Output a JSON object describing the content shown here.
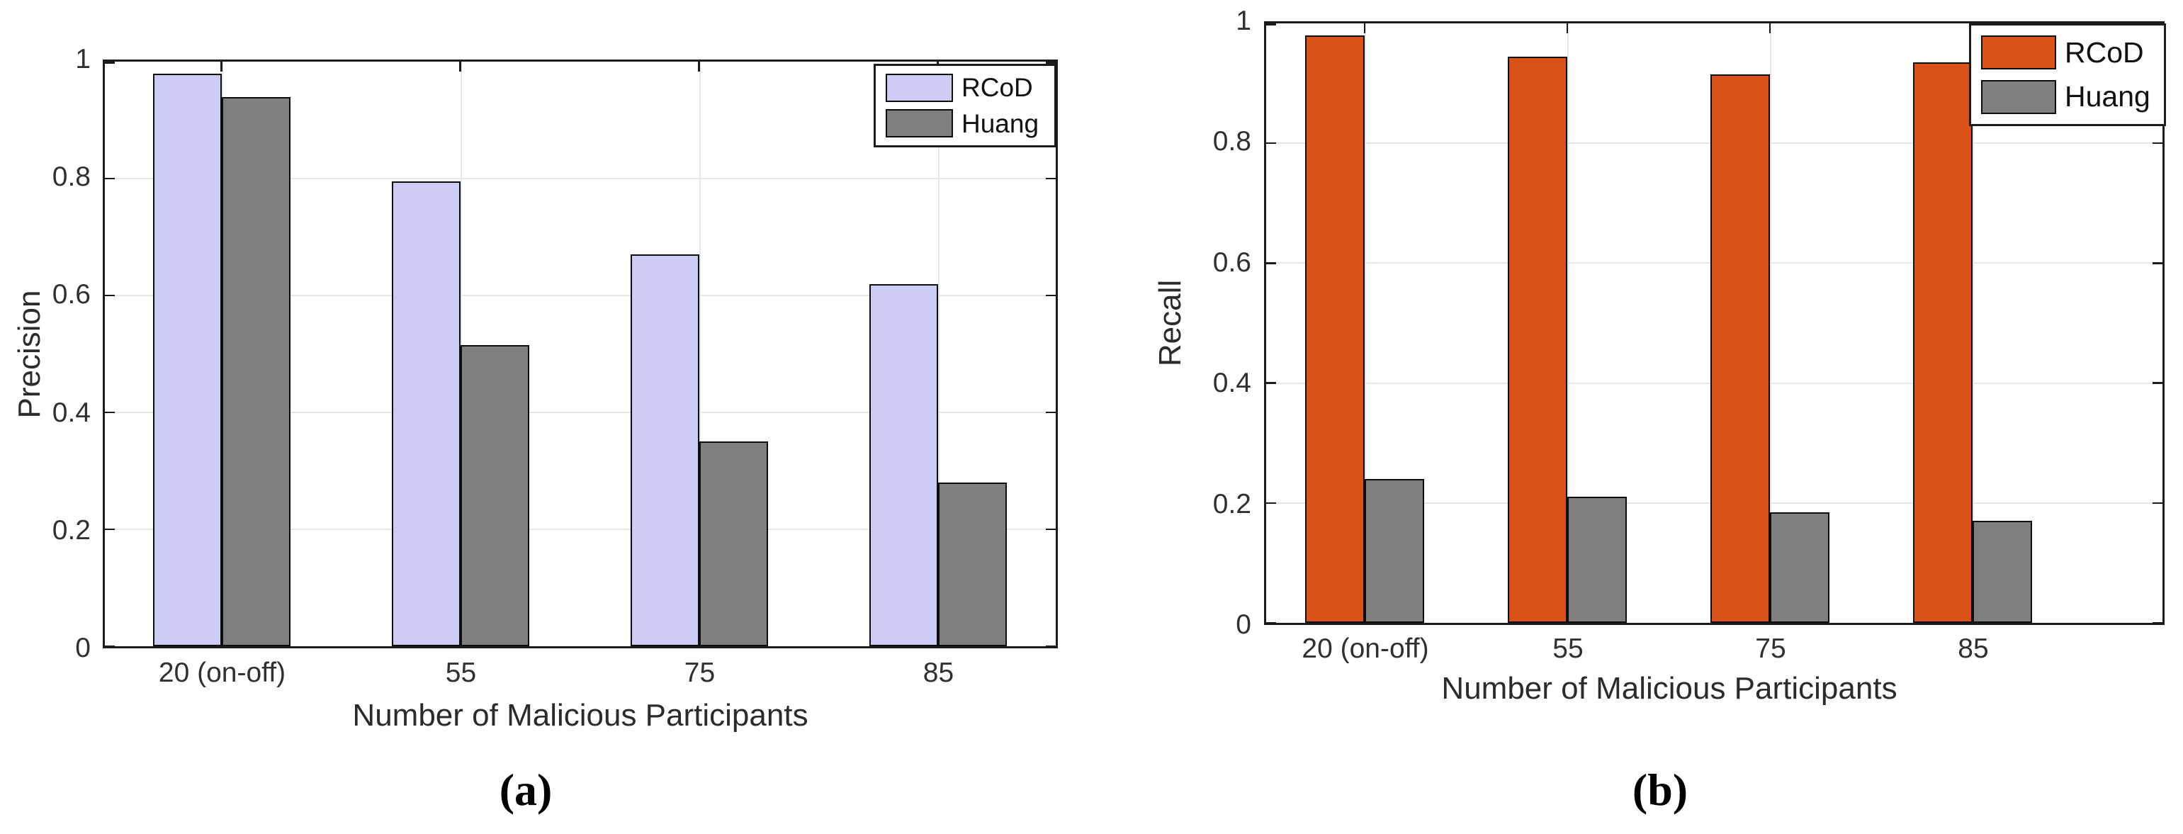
{
  "figure": {
    "description": "Two grouped bar charts comparing RCoD and Huang methods",
    "grid_color": "#e7e7e7",
    "axis_color": "#1c1c1c",
    "background": "#ffffff"
  },
  "chart_data": [
    {
      "type": "bar",
      "caption": "(a)",
      "title": "",
      "xlabel": "Number of Malicious Participants",
      "ylabel": "Precision",
      "categories": [
        "20 (on-off)",
        "55",
        "75",
        "85"
      ],
      "series": [
        {
          "name": "RCoD",
          "color": "#ccccf5",
          "values": [
            0.98,
            0.795,
            0.67,
            0.62
          ]
        },
        {
          "name": "Huang",
          "color": "#7f7f7f",
          "values": [
            0.94,
            0.515,
            0.35,
            0.28
          ]
        }
      ],
      "ylim": [
        0,
        1
      ],
      "yticks": [
        0,
        0.2,
        0.4,
        0.6,
        0.8,
        1
      ],
      "ytick_labels": [
        "0",
        "0.2",
        "0.4",
        "0.6",
        "0.8",
        "1"
      ],
      "grid": true,
      "legend_position": "top-right"
    },
    {
      "type": "bar",
      "caption": "(b)",
      "title": "",
      "xlabel": "Number of Malicious Participants",
      "ylabel": "Recall",
      "categories": [
        "20 (on-off)",
        "55",
        "75",
        "85"
      ],
      "series": [
        {
          "name": "RCoD",
          "color": "#d95319",
          "values": [
            0.98,
            0.945,
            0.915,
            0.935
          ]
        },
        {
          "name": "Huang",
          "color": "#7f7f7f",
          "values": [
            0.24,
            0.21,
            0.185,
            0.17
          ]
        }
      ],
      "ylim": [
        0,
        1
      ],
      "yticks": [
        0,
        0.2,
        0.4,
        0.6,
        0.8,
        1
      ],
      "ytick_labels": [
        "0",
        "0.2",
        "0.4",
        "0.6",
        "0.8",
        "1"
      ],
      "grid": true,
      "legend_position": "top-right"
    }
  ]
}
